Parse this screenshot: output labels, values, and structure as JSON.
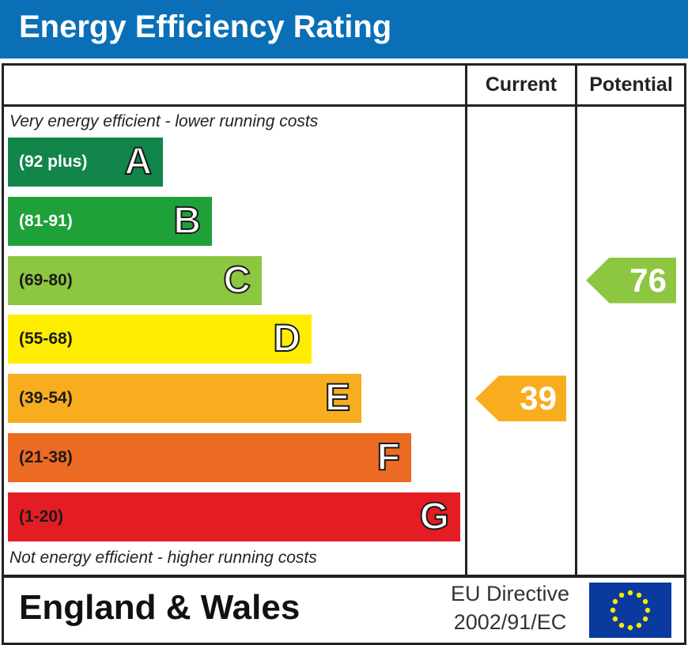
{
  "header": {
    "title": "Energy Efficiency Rating"
  },
  "columns": {
    "current": "Current",
    "potential": "Potential"
  },
  "notes": {
    "top": "Very energy efficient - lower running costs",
    "bottom": "Not energy efficient - higher running costs"
  },
  "chart_data": {
    "type": "bar",
    "title": "Energy Efficiency Rating",
    "bands": [
      {
        "letter": "A",
        "range": "(92 plus)",
        "color": "#11854a"
      },
      {
        "letter": "B",
        "range": "(81-91)",
        "color": "#1fa13a"
      },
      {
        "letter": "C",
        "range": "(69-80)",
        "color": "#8dc640"
      },
      {
        "letter": "D",
        "range": "(55-68)",
        "color": "#ffed00"
      },
      {
        "letter": "E",
        "range": "(39-54)",
        "color": "#f7ad1e"
      },
      {
        "letter": "F",
        "range": "(21-38)",
        "color": "#ec6b22"
      },
      {
        "letter": "G",
        "range": "(1-20)",
        "color": "#e31d23"
      }
    ],
    "current": {
      "value": 39,
      "band": "E",
      "color": "#f7ad1e"
    },
    "potential": {
      "value": 76,
      "band": "C",
      "color": "#8dc640"
    }
  },
  "footer": {
    "region": "England & Wales",
    "directive_line1": "EU Directive",
    "directive_line2": "2002/91/EC"
  },
  "flag": {
    "icon": "eu-flag-icon",
    "background": "#0a3a9e",
    "stars": "#ffe800"
  }
}
